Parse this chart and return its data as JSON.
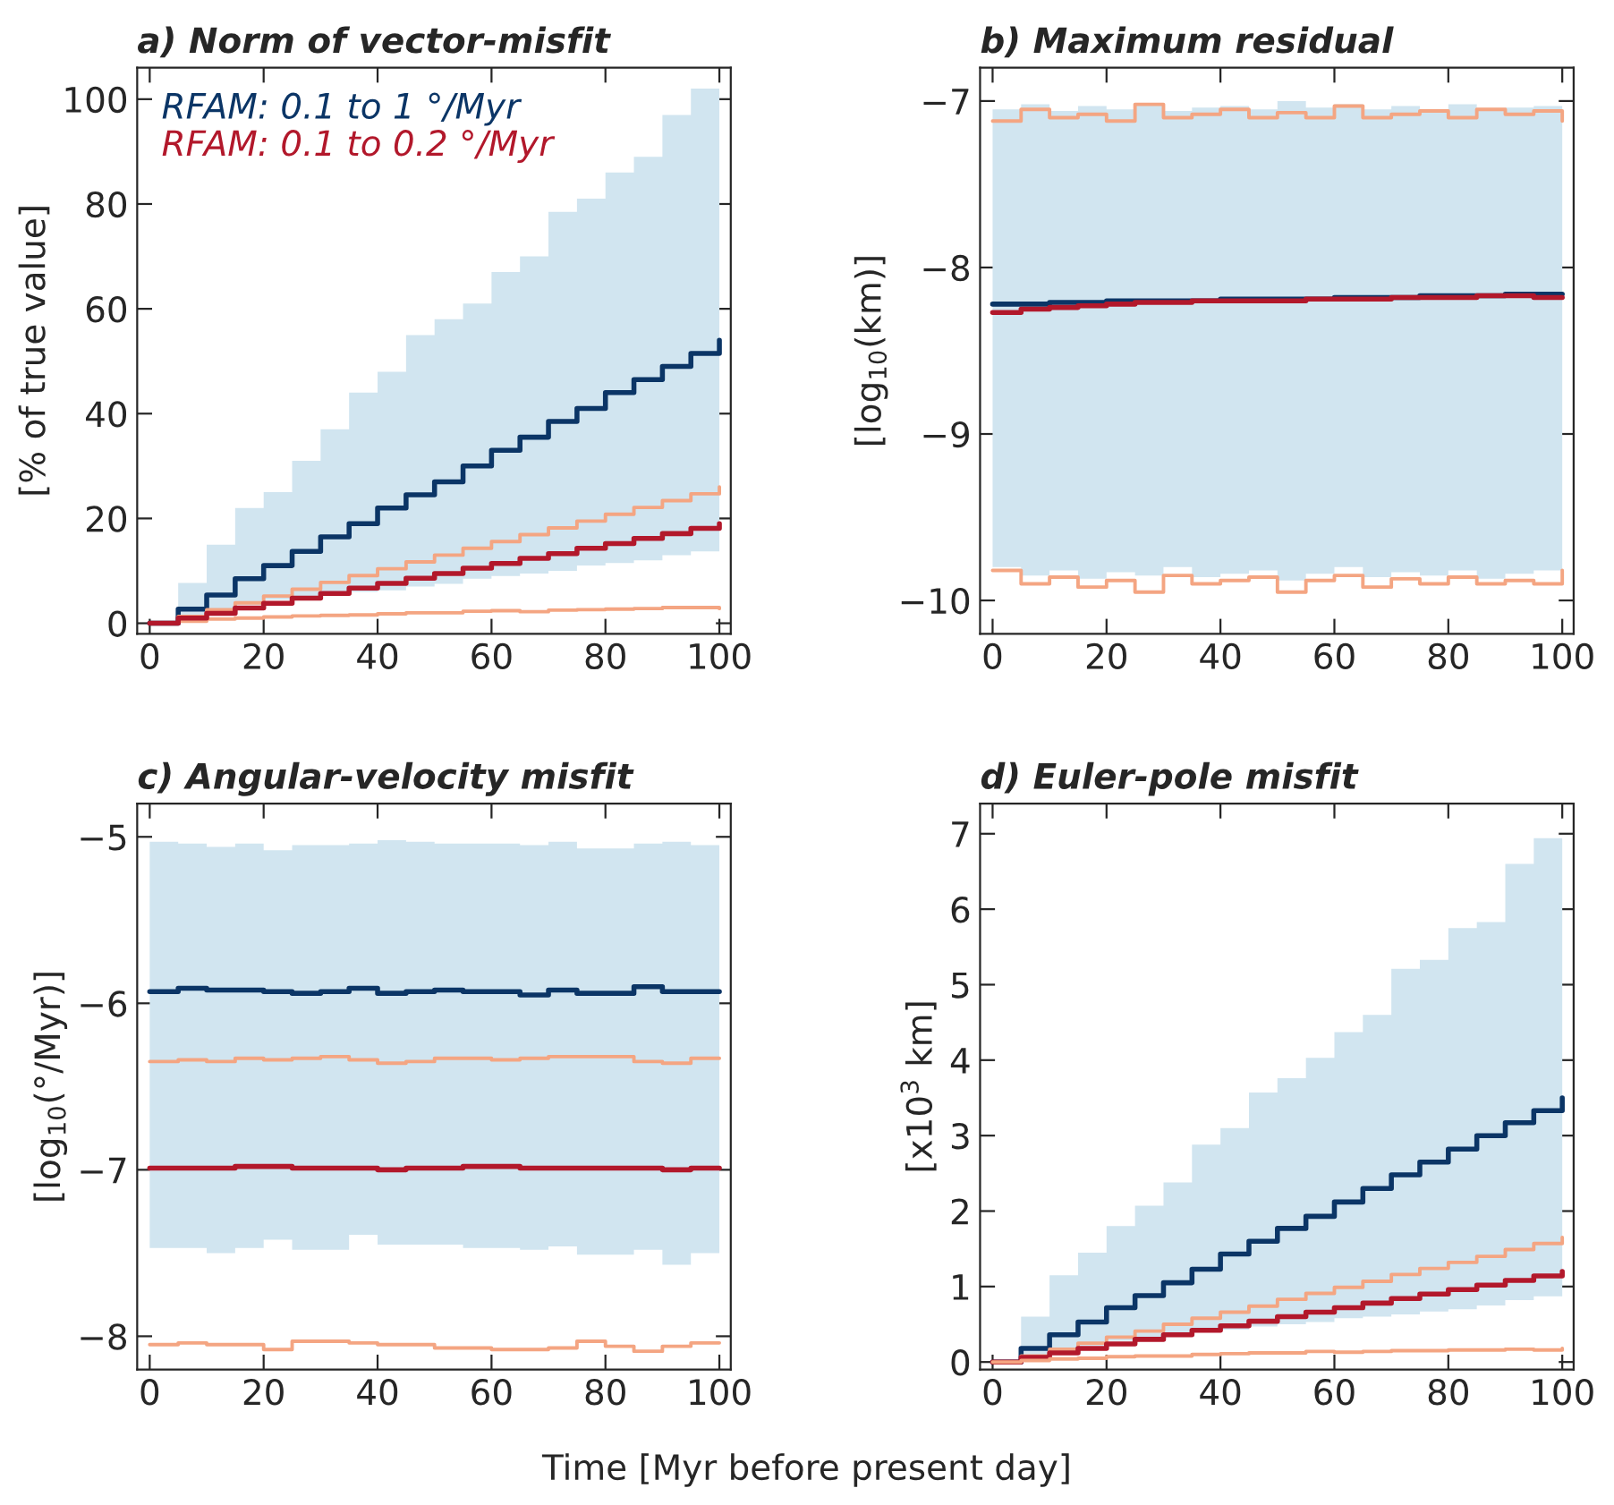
{
  "chart_data": [
    {
      "type": "step",
      "title": "a) Norm of vector-misfit",
      "ylabel": "[% of true value]",
      "x": [
        0,
        5,
        10,
        15,
        20,
        25,
        30,
        35,
        40,
        45,
        50,
        55,
        60,
        65,
        70,
        75,
        80,
        85,
        90,
        95,
        100
      ],
      "xlim": [
        -2.2,
        102
      ],
      "xticks": [
        0,
        20,
        40,
        60,
        80,
        100
      ],
      "ylim": [
        -2,
        106
      ],
      "yticks": [
        0,
        20,
        40,
        60,
        80,
        100
      ],
      "grid": false,
      "legend": "top left",
      "series": [
        {
          "name": "RFAM: 0.1 to 1 °/Myr",
          "color": "#0b3566",
          "values": [
            0,
            2.7,
            5.4,
            8.5,
            11,
            13.7,
            16.5,
            19,
            22,
            24.5,
            27,
            30,
            33,
            35.5,
            38.5,
            41,
            44,
            46.5,
            49,
            51.5,
            54
          ],
          "lower": [
            0,
            1.2,
            2.5,
            3.5,
            4.5,
            5,
            5.5,
            6,
            6.3,
            7,
            7.5,
            8.5,
            9,
            9.5,
            10,
            11,
            11.5,
            12,
            13,
            13.7,
            14
          ],
          "upper": [
            0,
            7.7,
            15,
            22,
            25,
            31,
            37,
            44,
            48,
            55,
            58,
            61,
            67,
            70,
            78.5,
            81,
            86,
            89,
            97,
            102,
            102.5
          ]
        },
        {
          "color": "#f4a582",
          "values": [
            0,
            1.3,
            2.6,
            3.9,
            5.2,
            6.5,
            7.8,
            9.1,
            10.4,
            11.7,
            13,
            14.3,
            15.6,
            16.9,
            18.2,
            19.5,
            20.8,
            22.1,
            23.4,
            24.7,
            26
          ]
        },
        {
          "color": "#f4a582",
          "values": [
            0,
            0.4,
            0.8,
            1,
            1.2,
            1.4,
            1.5,
            1.6,
            1.8,
            2,
            2,
            2.3,
            2.4,
            2.2,
            2.5,
            2.6,
            2.7,
            2.8,
            3,
            3,
            2.8
          ]
        },
        {
          "name": "RFAM: 0.1 to 0.2 °/Myr",
          "color": "#b2182b",
          "values": [
            0,
            1,
            1.9,
            2.9,
            3.8,
            4.8,
            5.7,
            6.7,
            7.6,
            8.6,
            9.5,
            10.5,
            11.4,
            12.4,
            13.3,
            14.3,
            15.2,
            16.2,
            17.1,
            18.1,
            19
          ]
        }
      ]
    },
    {
      "type": "step",
      "title": "b) Maximum residual",
      "ylabel": "[log$_{10}$(km)]",
      "x": [
        0,
        5,
        10,
        15,
        20,
        25,
        30,
        35,
        40,
        45,
        50,
        55,
        60,
        65,
        70,
        75,
        80,
        85,
        90,
        95,
        100
      ],
      "xlim": [
        -2.2,
        102
      ],
      "xticks": [
        0,
        20,
        40,
        60,
        80,
        100
      ],
      "ylim": [
        -10.2,
        -6.8
      ],
      "yticks": [
        {
          "value": -10,
          "label": "−10"
        },
        {
          "value": -9,
          "label": "−9"
        },
        {
          "value": -8,
          "label": "−8"
        },
        {
          "value": -7,
          "label": "−7"
        }
      ],
      "grid": false,
      "series": [
        {
          "color": "#0b3566",
          "values": [
            -8.22,
            -8.22,
            -8.21,
            -8.21,
            -8.2,
            -8.2,
            -8.2,
            -8.2,
            -8.19,
            -8.19,
            -8.19,
            -8.19,
            -8.18,
            -8.18,
            -8.18,
            -8.17,
            -8.17,
            -8.17,
            -8.16,
            -8.16,
            -8.16
          ],
          "lower": [
            -9.8,
            -9.85,
            -9.82,
            -9.87,
            -9.83,
            -9.85,
            -9.8,
            -9.86,
            -9.84,
            -9.82,
            -9.88,
            -9.84,
            -9.8,
            -9.86,
            -9.83,
            -9.85,
            -9.82,
            -9.87,
            -9.84,
            -9.82,
            -9.85
          ],
          "upper": [
            -7.05,
            -7.02,
            -7.06,
            -7.03,
            -7.05,
            -7.02,
            -7.06,
            -7.04,
            -7.03,
            -7.05,
            -7.0,
            -7.04,
            -7.02,
            -7.05,
            -7.03,
            -7.06,
            -7.02,
            -7.05,
            -7.04,
            -7.03,
            -7.05
          ]
        },
        {
          "color": "#b2182b",
          "values": [
            -8.27,
            -8.25,
            -8.24,
            -8.23,
            -8.22,
            -8.21,
            -8.21,
            -8.2,
            -8.2,
            -8.2,
            -8.2,
            -8.19,
            -8.19,
            -8.19,
            -8.18,
            -8.18,
            -8.18,
            -8.17,
            -8.17,
            -8.18,
            -8.18
          ]
        },
        {
          "color": "#f4a582",
          "values": [
            -7.12,
            -7.05,
            -7.1,
            -7.08,
            -7.12,
            -7.02,
            -7.1,
            -7.08,
            -7.05,
            -7.1,
            -7.07,
            -7.1,
            -7.03,
            -7.1,
            -7.08,
            -7.06,
            -7.1,
            -7.05,
            -7.08,
            -7.06,
            -7.12
          ]
        },
        {
          "color": "#f4a582",
          "values": [
            -9.82,
            -9.9,
            -9.86,
            -9.92,
            -9.88,
            -9.95,
            -9.85,
            -9.9,
            -9.88,
            -9.86,
            -9.95,
            -9.88,
            -9.85,
            -9.92,
            -9.87,
            -9.9,
            -9.86,
            -9.9,
            -9.88,
            -9.9,
            -9.82
          ]
        }
      ]
    },
    {
      "type": "step",
      "title": "c) Angular-velocity misfit",
      "ylabel": "[log$_{10}$(°/Myr)]",
      "xlabel": "Time [Myr before present day]",
      "x": [
        0,
        5,
        10,
        15,
        20,
        25,
        30,
        35,
        40,
        45,
        50,
        55,
        60,
        65,
        70,
        75,
        80,
        85,
        90,
        95,
        100
      ],
      "xlim": [
        -2.2,
        102
      ],
      "xticks": [
        0,
        20,
        40,
        60,
        80,
        100
      ],
      "ylim": [
        -8.2,
        -4.8
      ],
      "yticks": [
        {
          "value": -8,
          "label": "−8"
        },
        {
          "value": -7,
          "label": "−7"
        },
        {
          "value": -6,
          "label": "−6"
        },
        {
          "value": -5,
          "label": "−5"
        }
      ],
      "grid": false,
      "series": [
        {
          "color": "#0b3566",
          "values": [
            -5.93,
            -5.91,
            -5.92,
            -5.92,
            -5.93,
            -5.94,
            -5.93,
            -5.91,
            -5.94,
            -5.93,
            -5.92,
            -5.93,
            -5.93,
            -5.95,
            -5.92,
            -5.94,
            -5.94,
            -5.9,
            -5.93,
            -5.93,
            -5.93
          ],
          "lower": [
            -7.47,
            -7.47,
            -7.5,
            -7.47,
            -7.42,
            -7.48,
            -7.48,
            -7.39,
            -7.45,
            -7.45,
            -7.45,
            -7.47,
            -7.47,
            -7.48,
            -7.46,
            -7.51,
            -7.51,
            -7.48,
            -7.57,
            -7.5,
            -7.5
          ],
          "upper": [
            -5.03,
            -5.04,
            -5.06,
            -5.04,
            -5.08,
            -5.05,
            -5.05,
            -5.04,
            -5.02,
            -5.03,
            -5.04,
            -5.04,
            -5.04,
            -5.05,
            -5.03,
            -5.07,
            -5.07,
            -5.04,
            -5.03,
            -5.05,
            -5.05
          ]
        },
        {
          "color": "#f4a582",
          "values": [
            -6.35,
            -6.34,
            -6.35,
            -6.33,
            -6.34,
            -6.33,
            -6.32,
            -6.34,
            -6.36,
            -6.35,
            -6.33,
            -6.33,
            -6.34,
            -6.33,
            -6.32,
            -6.32,
            -6.32,
            -6.35,
            -6.36,
            -6.33,
            -6.33
          ]
        },
        {
          "color": "#b2182b",
          "values": [
            -6.99,
            -6.99,
            -6.99,
            -6.98,
            -6.98,
            -6.99,
            -6.99,
            -6.99,
            -7.0,
            -6.99,
            -6.99,
            -6.98,
            -6.98,
            -6.99,
            -6.99,
            -6.99,
            -6.99,
            -6.99,
            -7.0,
            -6.99,
            -6.99
          ]
        },
        {
          "color": "#f4a582",
          "values": [
            -8.05,
            -8.04,
            -8.05,
            -8.05,
            -8.08,
            -8.03,
            -8.03,
            -8.04,
            -8.05,
            -8.05,
            -8.07,
            -8.07,
            -8.08,
            -8.08,
            -8.07,
            -8.03,
            -8.06,
            -8.09,
            -8.06,
            -8.04,
            -8.04
          ]
        }
      ]
    },
    {
      "type": "step",
      "title": "d) Euler-pole misfit",
      "ylabel": "[x10$^{3}$ km]",
      "x": [
        0,
        5,
        10,
        15,
        20,
        25,
        30,
        35,
        40,
        45,
        50,
        55,
        60,
        65,
        70,
        75,
        80,
        85,
        90,
        95,
        100
      ],
      "xlim": [
        -2.2,
        102
      ],
      "xticks": [
        0,
        20,
        40,
        60,
        80,
        100
      ],
      "ylim": [
        -0.1,
        7.4
      ],
      "yticks": [
        0,
        1,
        2,
        3,
        4,
        5,
        6,
        7
      ],
      "grid": false,
      "series": [
        {
          "color": "#0b3566",
          "values": [
            0,
            0.18,
            0.36,
            0.53,
            0.72,
            0.88,
            1.05,
            1.23,
            1.43,
            1.6,
            1.77,
            1.93,
            2.12,
            2.3,
            2.48,
            2.65,
            2.82,
            3.0,
            3.17,
            3.33,
            3.5
          ],
          "lower": [
            0,
            0.08,
            0.15,
            0.22,
            0.28,
            0.32,
            0.36,
            0.4,
            0.43,
            0.47,
            0.5,
            0.53,
            0.58,
            0.6,
            0.63,
            0.67,
            0.7,
            0.75,
            0.82,
            0.87,
            0.9
          ],
          "upper": [
            0,
            0.6,
            1.15,
            1.45,
            1.8,
            2.07,
            2.38,
            2.88,
            3.1,
            3.57,
            3.76,
            4.03,
            4.37,
            4.6,
            5.21,
            5.33,
            5.75,
            5.83,
            6.6,
            6.94,
            7.0
          ]
        },
        {
          "color": "#f4a582",
          "values": [
            0,
            0.08,
            0.17,
            0.25,
            0.33,
            0.41,
            0.5,
            0.58,
            0.66,
            0.74,
            0.83,
            0.91,
            0.99,
            1.07,
            1.16,
            1.24,
            1.32,
            1.4,
            1.49,
            1.57,
            1.65
          ]
        },
        {
          "color": "#b2182b",
          "values": [
            0,
            0.06,
            0.12,
            0.18,
            0.24,
            0.3,
            0.36,
            0.42,
            0.48,
            0.54,
            0.6,
            0.66,
            0.72,
            0.78,
            0.84,
            0.9,
            0.96,
            1.02,
            1.08,
            1.14,
            1.2
          ]
        },
        {
          "color": "#f4a582",
          "values": [
            0,
            0.02,
            0.04,
            0.05,
            0.07,
            0.08,
            0.08,
            0.1,
            0.11,
            0.12,
            0.12,
            0.14,
            0.13,
            0.14,
            0.15,
            0.15,
            0.16,
            0.16,
            0.17,
            0.16,
            0.18
          ]
        }
      ]
    }
  ]
}
